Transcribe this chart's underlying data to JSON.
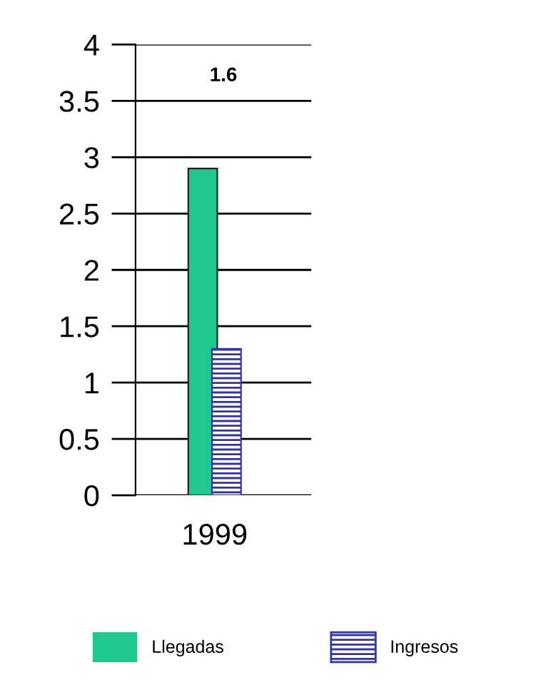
{
  "chart_data": {
    "type": "bar",
    "categories": [
      "1999"
    ],
    "series": [
      {
        "name": "Llegadas",
        "color": "#1fc88e",
        "values": [
          2.9
        ]
      },
      {
        "name": "Ingresos",
        "color": "#3333aa",
        "values": [
          1.3
        ]
      }
    ],
    "ylim": [
      0,
      4
    ],
    "yticks": [
      0,
      0.5,
      1,
      1.5,
      2,
      2.5,
      3,
      3.5,
      4
    ],
    "grid": "y",
    "legend": "bottom",
    "annotations": [
      "1.6"
    ]
  }
}
